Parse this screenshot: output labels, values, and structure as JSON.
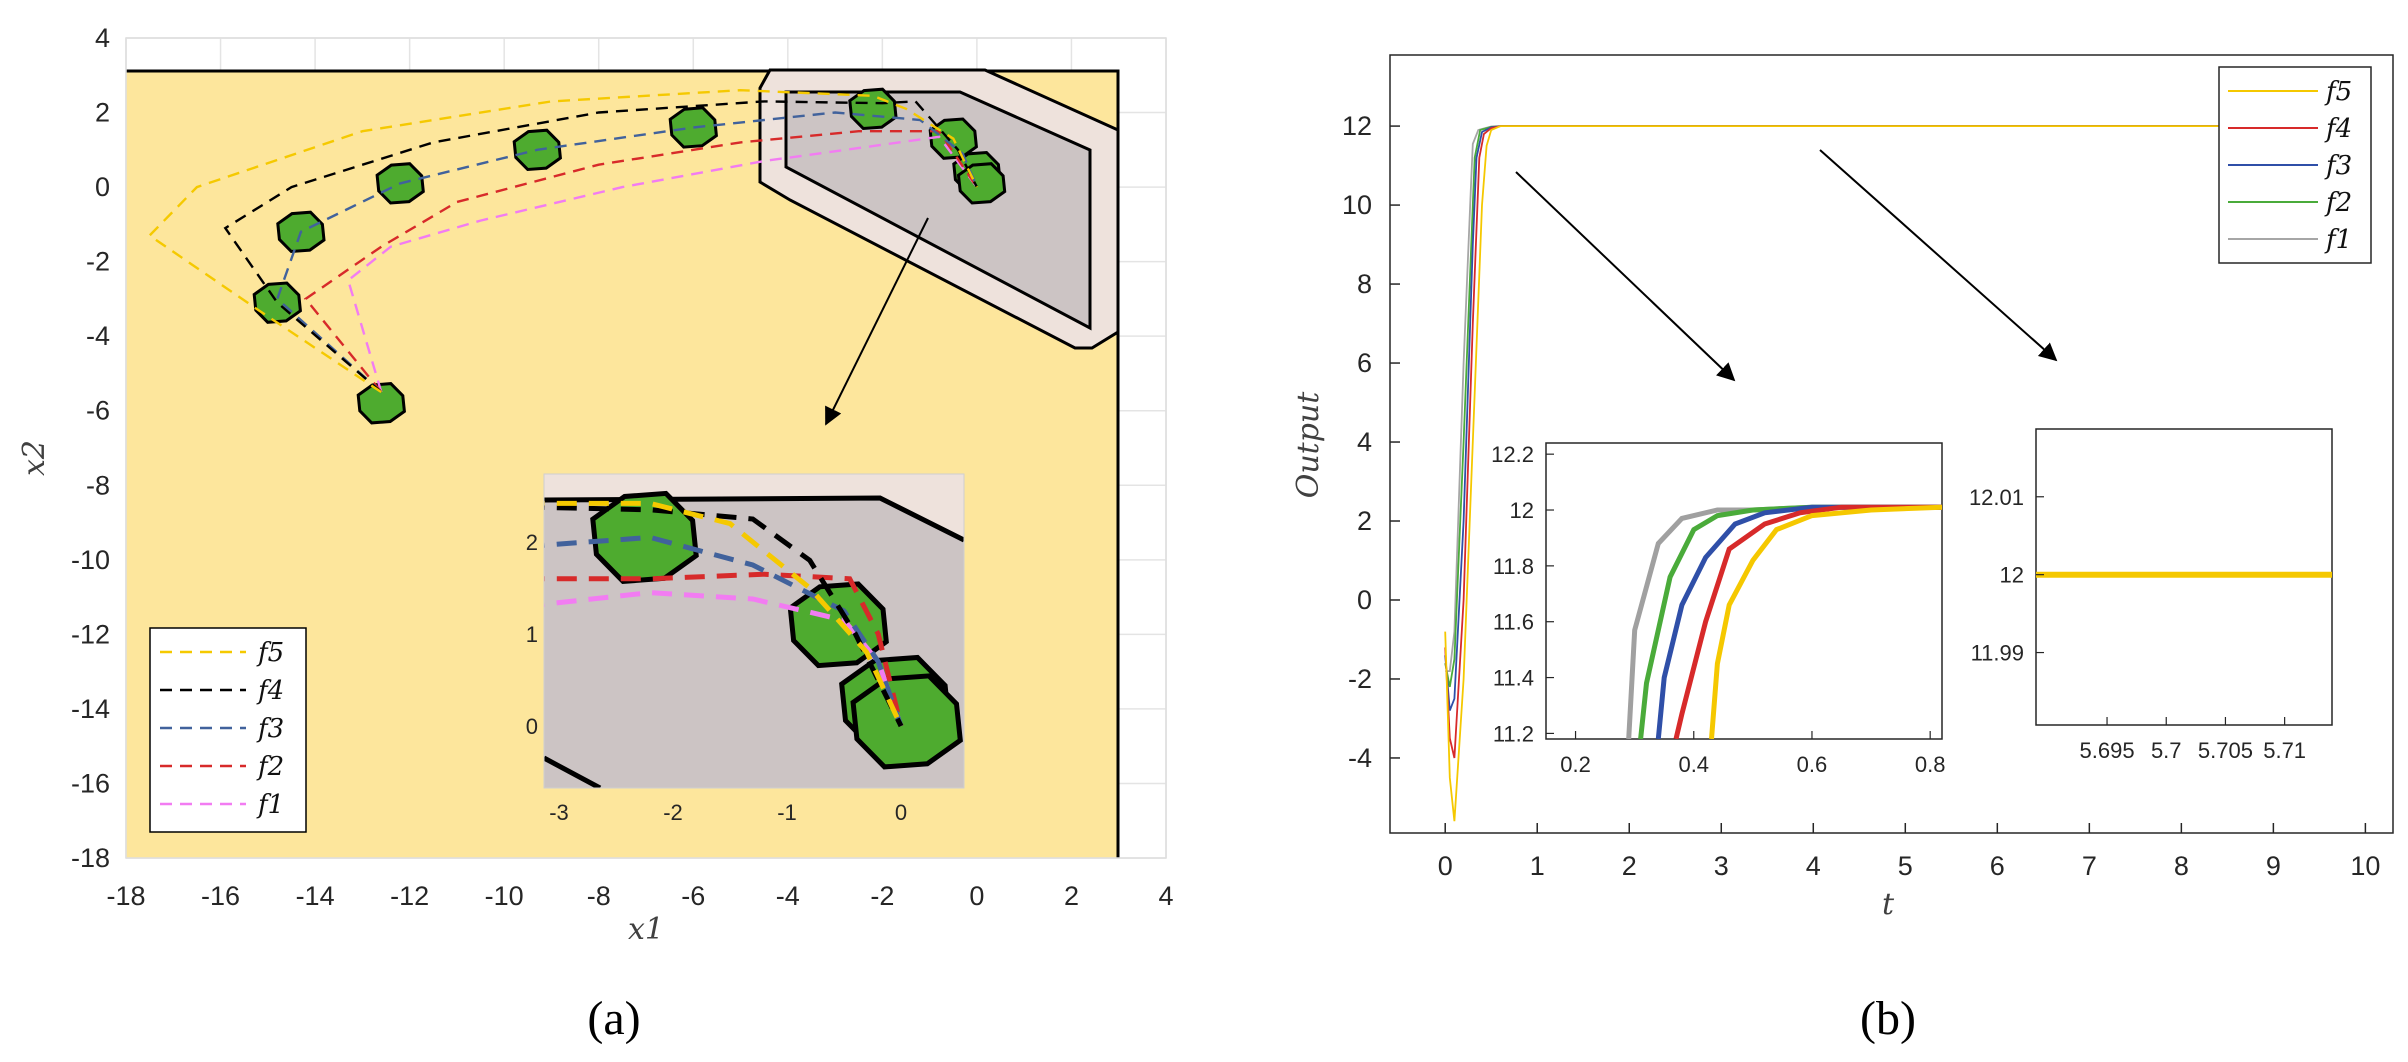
{
  "chart_data": [
    {
      "panel": "(a)",
      "type": "line",
      "xlabel": "x1",
      "ylabel": "x2",
      "xlim": [
        -18,
        4
      ],
      "ylim": [
        -18,
        4
      ],
      "xticks": [
        "-18",
        "-16",
        "-14",
        "-12",
        "-10",
        "-8",
        "-6",
        "-4",
        "-2",
        "0",
        "2",
        "4"
      ],
      "yticks": [
        "4",
        "2",
        "0",
        "-2",
        "-4",
        "-6",
        "-8",
        "-10",
        "-12",
        "-14",
        "-16",
        "-18"
      ],
      "grid": true,
      "legend_position": "bottom-left",
      "colors": {
        "free_space": "#fde69c",
        "obstacle_outer": "#eee2dc",
        "obstacle_inner": "#ccc4c4",
        "robot": "#4eab2f"
      },
      "series": [
        {
          "name": "f5",
          "color": "#f5c900",
          "x": [
            -12.6,
            -15.2,
            -17.5,
            -16.5,
            -13,
            -9,
            -5,
            -2.2,
            -1.5,
            -0.5,
            0
          ],
          "y": [
            -5.5,
            -3.3,
            -1.3,
            0,
            1.5,
            2.3,
            2.6,
            2.45,
            2.1,
            1.3,
            0
          ]
        },
        {
          "name": "f4",
          "color": "#000000",
          "x": [
            -12.6,
            -14.8,
            -15.9,
            -14.5,
            -11.5,
            -8,
            -4.5,
            -2,
            -1.3,
            -0.4,
            0
          ],
          "y": [
            -5.5,
            -3.1,
            -1.1,
            0,
            1.2,
            2,
            2.3,
            2.25,
            2.3,
            1,
            0
          ]
        },
        {
          "name": "f3",
          "color": "#41629c",
          "x": [
            -12.6,
            -14.8,
            -14.3,
            -12.2,
            -9.3,
            -6,
            -3,
            -1.2,
            -0.3,
            0
          ],
          "y": [
            -5.5,
            -3,
            -1.2,
            0.1,
            1,
            1.6,
            2,
            1.8,
            0.9,
            0
          ]
        },
        {
          "name": "f2",
          "color": "#d72a2a",
          "x": [
            -12.6,
            -14.2,
            -12.6,
            -11,
            -8,
            -5,
            -2.5,
            -0.8,
            0
          ],
          "y": [
            -5.5,
            -3,
            -1.6,
            -0.4,
            0.6,
            1.2,
            1.5,
            1.5,
            0
          ]
        },
        {
          "name": "f1",
          "color": "#f27cf2",
          "x": [
            -12.6,
            -13.3,
            -12.4,
            -10.5,
            -7.5,
            -4.5,
            -2.2,
            -0.8,
            0
          ],
          "y": [
            -5.5,
            -2.5,
            -1.6,
            -0.9,
            0,
            0.7,
            1.1,
            1.35,
            0
          ]
        }
      ],
      "inset": {
        "xticks": [
          "-3",
          "-2",
          "-1",
          "0"
        ],
        "yticks": [
          "2",
          "1",
          "0"
        ]
      }
    },
    {
      "panel": "(b)",
      "type": "line",
      "xlabel": "t",
      "ylabel": "Output",
      "xlim": [
        -0.6,
        10.3
      ],
      "ylim": [
        -5.9,
        13.8
      ],
      "xticks": [
        "0",
        "1",
        "2",
        "3",
        "4",
        "5",
        "6",
        "7",
        "8",
        "9",
        "10"
      ],
      "yticks": [
        "12",
        "10",
        "8",
        "6",
        "4",
        "2",
        "0",
        "-2",
        "-4"
      ],
      "grid": false,
      "legend_position": "top-right",
      "series": [
        {
          "name": "f5",
          "color": "#f5c800",
          "x": [
            0,
            0.05,
            0.1,
            0.2,
            0.3,
            0.4,
            0.45,
            0.5,
            0.6,
            0.8,
            10
          ],
          "y": [
            -0.8,
            -4.5,
            -5.6,
            -2,
            4,
            10,
            11.5,
            11.9,
            12,
            12,
            12
          ]
        },
        {
          "name": "f4",
          "color": "#d72a2a",
          "x": [
            0,
            0.05,
            0.1,
            0.2,
            0.3,
            0.37,
            0.42,
            0.5,
            0.6,
            0.8,
            10
          ],
          "y": [
            -1.2,
            -3.5,
            -4,
            0,
            7,
            11.2,
            11.8,
            11.95,
            12,
            12,
            12
          ]
        },
        {
          "name": "f3",
          "color": "#2f4fa8",
          "x": [
            0,
            0.05,
            0.1,
            0.2,
            0.3,
            0.34,
            0.4,
            0.5,
            0.6,
            0.8,
            10
          ],
          "y": [
            -1.4,
            -2.8,
            -2.5,
            2,
            9,
            11.2,
            11.85,
            11.97,
            12,
            12,
            12
          ]
        },
        {
          "name": "f2",
          "color": "#4aab3a",
          "x": [
            0,
            0.05,
            0.1,
            0.2,
            0.3,
            0.32,
            0.38,
            0.5,
            0.6,
            0.8,
            10
          ],
          "y": [
            -1.6,
            -2.2,
            -1.5,
            4,
            10,
            11.2,
            11.9,
            11.98,
            12,
            12,
            12
          ]
        },
        {
          "name": "f1",
          "color": "#a6a6a6",
          "x": [
            0,
            0.05,
            0.1,
            0.2,
            0.28,
            0.3,
            0.36,
            0.5,
            0.6,
            0.8,
            10
          ],
          "y": [
            -1.8,
            -1.8,
            -0.8,
            6,
            10.5,
            11.55,
            11.9,
            11.99,
            12,
            12,
            12
          ]
        }
      ],
      "inset_left": {
        "xlim": [
          0.15,
          0.82
        ],
        "ylim": [
          11.18,
          12.24
        ],
        "xticks": [
          "0.2",
          "0.4",
          "0.6",
          "0.8"
        ],
        "yticks": [
          "12.2",
          "12",
          "11.8",
          "11.6",
          "11.4",
          "11.2"
        ],
        "series": [
          {
            "name": "f1",
            "color": "#a0a0a0",
            "x": [
              0.29,
              0.3,
              0.34,
              0.38,
              0.44,
              0.5,
              0.6,
              0.82
            ],
            "y": [
              11.18,
              11.57,
              11.88,
              11.97,
              12,
              12,
              12.01,
              12.01
            ]
          },
          {
            "name": "f2",
            "color": "#4aab3a",
            "x": [
              0.31,
              0.32,
              0.36,
              0.4,
              0.44,
              0.5,
              0.6,
              0.82
            ],
            "y": [
              11.18,
              11.38,
              11.76,
              11.93,
              11.98,
              12,
              12.01,
              12.01
            ]
          },
          {
            "name": "f3",
            "color": "#2f4fa8",
            "x": [
              0.34,
              0.35,
              0.38,
              0.42,
              0.47,
              0.52,
              0.6,
              0.82
            ],
            "y": [
              11.18,
              11.4,
              11.66,
              11.83,
              11.95,
              11.99,
              12.01,
              12.01
            ]
          },
          {
            "name": "f4",
            "color": "#d72a2a",
            "x": [
              0.37,
              0.38,
              0.42,
              0.46,
              0.52,
              0.58,
              0.65,
              0.82
            ],
            "y": [
              11.18,
              11.27,
              11.6,
              11.86,
              11.95,
              11.99,
              12.01,
              12.01
            ]
          },
          {
            "name": "f5",
            "color": "#f5c800",
            "x": [
              0.43,
              0.44,
              0.46,
              0.5,
              0.54,
              0.6,
              0.7,
              0.82
            ],
            "y": [
              11.18,
              11.45,
              11.66,
              11.82,
              11.93,
              11.98,
              12,
              12.01
            ]
          }
        ]
      },
      "inset_right": {
        "xlim": [
          5.689,
          5.714
        ],
        "ylim": [
          11.9807,
          12.0187
        ],
        "xticks": [
          "5.695",
          "5.7",
          "5.705",
          "5.71"
        ],
        "yticks": [
          "12.01",
          "12",
          "11.99"
        ],
        "series": [
          {
            "name": "f5",
            "color": "#f5c800",
            "x": [
              5.689,
              5.714
            ],
            "y": [
              12,
              12
            ]
          }
        ]
      }
    }
  ],
  "captions": {
    "a": "(a)",
    "b": "(b)"
  }
}
